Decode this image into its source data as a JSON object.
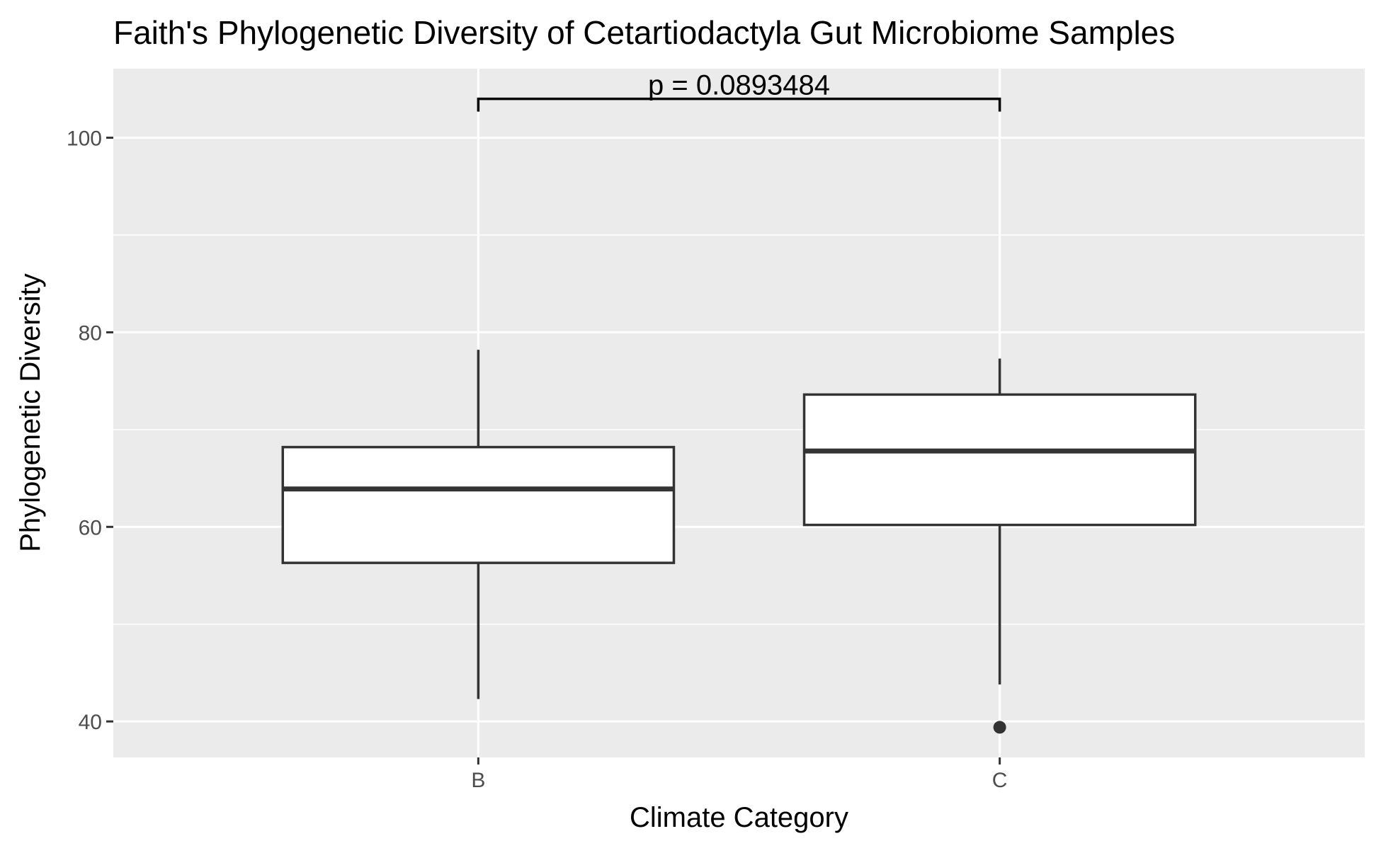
{
  "chart_data": {
    "type": "box",
    "title": "Faith's Phylogenetic Diversity of Cetartiodactyla Gut Microbiome Samples",
    "xlabel": "Climate Category",
    "ylabel": "Phylogenetic Diversity",
    "categories": [
      "B",
      "C"
    ],
    "ylim": [
      36.3,
      107.1
    ],
    "yticks": [
      40,
      60,
      80,
      100
    ],
    "grid": true,
    "boxes": [
      {
        "category": "B",
        "lower_whisker": 42.3,
        "q1": 56.3,
        "median": 63.9,
        "q3": 68.2,
        "upper_whisker": 78.2,
        "outliers": []
      },
      {
        "category": "C",
        "lower_whisker": 43.8,
        "q1": 60.2,
        "median": 67.8,
        "q3": 73.6,
        "upper_whisker": 77.3,
        "outliers": [
          39.4
        ]
      }
    ],
    "annotation": {
      "text": "p = 0.0893484",
      "from": "B",
      "to": "C",
      "y": 104.0
    },
    "colors": {
      "panel": "#EBEBEB",
      "grid": "#FFFFFF",
      "box_fill": "#FFFFFF",
      "box_stroke": "#333333",
      "text": "#000000",
      "tick_text": "#4D4D4D"
    }
  }
}
